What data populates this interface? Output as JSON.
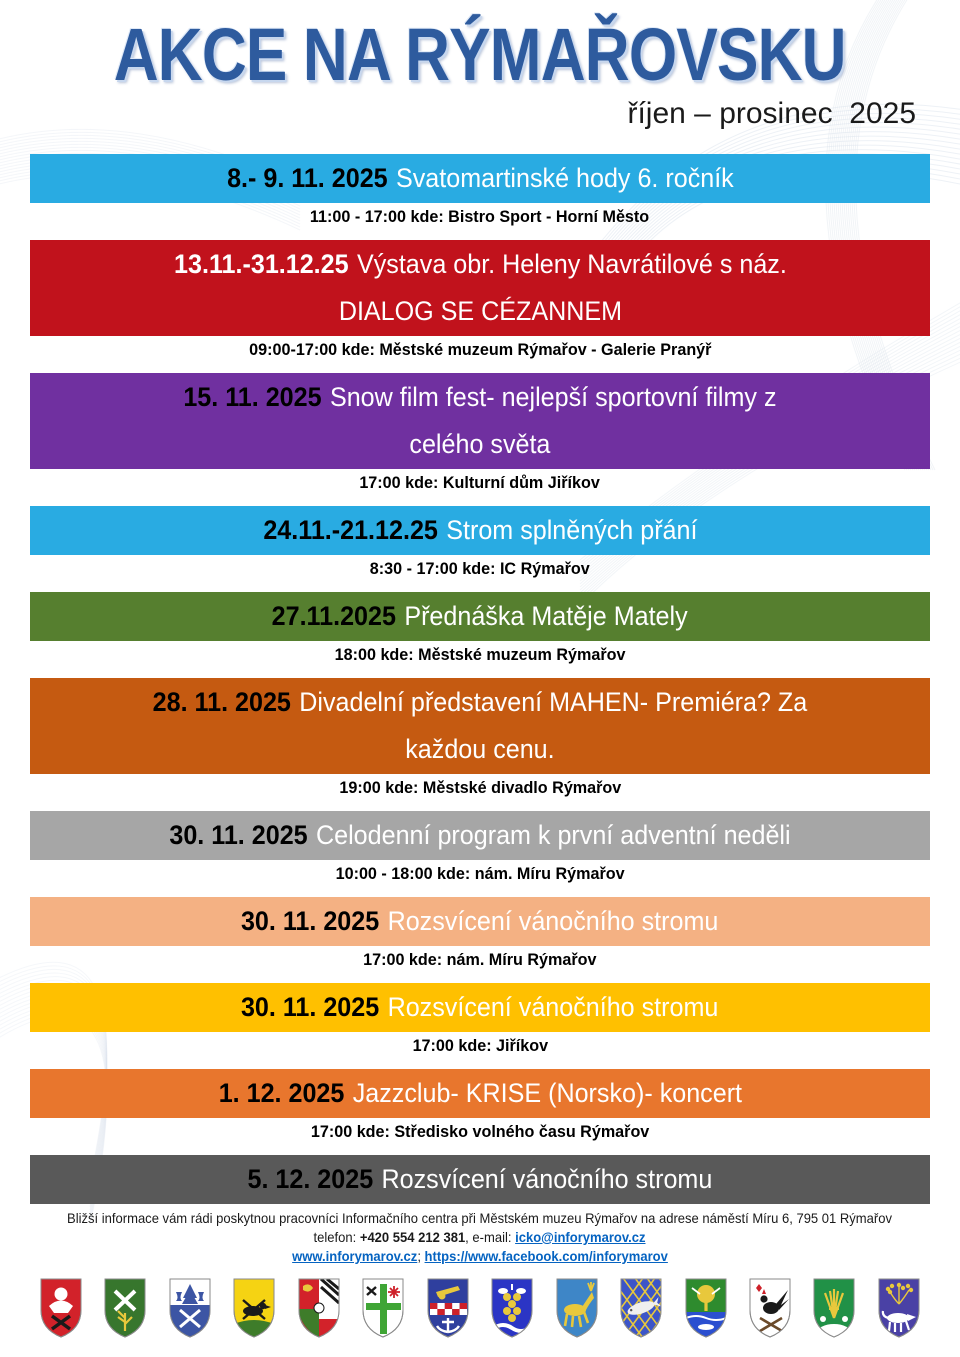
{
  "header": {
    "title": "AKCE NA RÝMAŘOVSKU",
    "subtitle": "říjen – prosinec  2025",
    "title_color": "#2E5B9E"
  },
  "events": [
    {
      "date": "8.- 9. 11. 2025",
      "title": "Svatomartinské hody 6. ročník",
      "info": "11:00 - 17:00 kde: Bistro Sport - Horní Město",
      "color": "#29ABE2",
      "date_color": "#000000"
    },
    {
      "date": "13.11.-31.12.25",
      "title": "Výstava obr. Heleny Navrátilové s náz.\nDIALOG SE CÉZANNEM",
      "info": "09:00-17:00 kde: Městské muzeum Rýmařov - Galerie Pranýř",
      "color": "#C1121C",
      "date_color": "#FFFFFF"
    },
    {
      "date": "15. 11. 2025",
      "title": "Snow film fest- nejlepší sportovní filmy z\ncelého světa",
      "info": "17:00 kde: Kulturní dům Jiříkov",
      "color": "#7030A0",
      "date_color": "#000000"
    },
    {
      "date": "24.11.-21.12.25",
      "title": "Strom splněných přání",
      "info": "8:30 - 17:00 kde: IC Rýmařov",
      "color": "#29ABE2",
      "date_color": "#000000"
    },
    {
      "date": "27.11.2025",
      "title": "Přednáška Matěje Mately",
      "info": "18:00 kde: Městské muzeum Rýmařov",
      "color": "#567F2F",
      "date_color": "#000000"
    },
    {
      "date": "28. 11. 2025",
      "title": "Divadelní představení MAHEN- Premiéra? Za\nkaždou cenu.",
      "info": "19:00 kde: Městské divadlo Rýmařov",
      "color": "#C55A11",
      "date_color": "#000000"
    },
    {
      "date": "30. 11. 2025",
      "title": "Celodenní program k první adventní neděli",
      "info": "10:00 - 18:00 kde: nám. Míru Rýmařov",
      "color": "#A6A6A6",
      "date_color": "#000000"
    },
    {
      "date": "30. 11. 2025",
      "title": "Rozsvícení vánočního stromu",
      "info": "17:00 kde: nám. Míru Rýmařov",
      "color": "#F4B183",
      "date_color": "#000000"
    },
    {
      "date": "30. 11. 2025",
      "title": "Rozsvícení vánočního stromu",
      "info": "17:00 kde: Jiříkov",
      "color": "#FFC000",
      "date_color": "#000000"
    },
    {
      "date": "1. 12. 2025",
      "title": "Jazzclub- KRISE (Norsko)- koncert",
      "info": "17:00 kde: Středisko volného času Rýmařov",
      "color": "#E8762D",
      "date_color": "#000000"
    },
    {
      "date": "5. 12. 2025",
      "title": "Rozsvícení vánočního stromu",
      "info": "",
      "color": "#595959",
      "date_color": "#000000"
    }
  ],
  "footer": {
    "line1": "Bližší informace vám rádi poskytnou pracovníci Informačního centra při Městském muzeu Rýmařov na adrese náměstí Míru 6, 795 01 Rýmařov",
    "phone_label": "telefon: ",
    "phone": "+420 554 212 381",
    "email_label": ", e-mail: ",
    "email": "icko@inforymarov.cz",
    "site": "www.inforymarov.cz",
    "separator": "; ",
    "facebook": "https://www.facebook.com/inforymarov",
    "link_color": "#0563C1"
  },
  "shields": [
    {
      "name": "coat-of-arms-1-icon",
      "field": "#D2222A",
      "charge": "#FFFFFF",
      "accent": "#1A1A1A"
    },
    {
      "name": "coat-of-arms-2-icon",
      "field": "#37762D",
      "charge": "#FFFFFF",
      "accent": "#E8C83C"
    },
    {
      "name": "coat-of-arms-3-icon",
      "field": "#FFFFFF",
      "charge": "#3C55A4",
      "accent": "#FFFFFF"
    },
    {
      "name": "coat-of-arms-4-icon",
      "field": "#F5D313",
      "charge": "#1A1A1A",
      "accent": "#3E7C2A"
    },
    {
      "name": "coat-of-arms-5-icon",
      "field": "#D2222A",
      "charge": "#FFFFFF",
      "accent": "#1A1A1A"
    },
    {
      "name": "coat-of-arms-6-icon",
      "field": "#FFFFFF",
      "charge": "#3FA535",
      "accent": "#CE2029"
    },
    {
      "name": "coat-of-arms-7-icon",
      "field": "#2F3F9E",
      "charge": "#E8C83C",
      "accent": "#CE2029"
    },
    {
      "name": "coat-of-arms-8-icon",
      "field": "#2B35C5",
      "charge": "#E8C83C",
      "accent": "#FFFFFF"
    },
    {
      "name": "coat-of-arms-9-icon",
      "field": "#3E86C7",
      "charge": "#E8C83C",
      "accent": "#E8C83C"
    },
    {
      "name": "coat-of-arms-10-icon",
      "field": "#3C55C8",
      "charge": "#E8C83C",
      "accent": "#EFEFEF"
    },
    {
      "name": "coat-of-arms-11-icon",
      "field": "#2E8B2E",
      "charge": "#E8C83C",
      "accent": "#2B4FD0"
    },
    {
      "name": "coat-of-arms-12-icon",
      "field": "#FFFFFF",
      "charge": "#1A1A1A",
      "accent": "#CE2029"
    },
    {
      "name": "coat-of-arms-13-icon",
      "field": "#219147",
      "charge": "#E8C83C",
      "accent": "#FFFFFF"
    },
    {
      "name": "coat-of-arms-14-icon",
      "field": "#4A41A5",
      "charge": "#E8C83C",
      "accent": "#FFFFFF"
    }
  ]
}
